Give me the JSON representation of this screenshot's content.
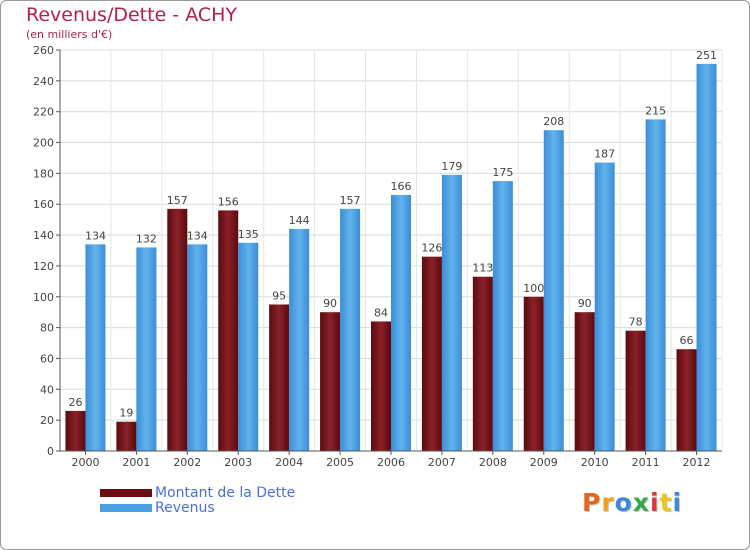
{
  "chart_data": {
    "type": "bar",
    "title": "Revenus/Dette - ACHY",
    "subtitle": "(en milliers d'€)",
    "xlabel": "",
    "ylabel": "",
    "categories": [
      "2000",
      "2001",
      "2002",
      "2003",
      "2004",
      "2005",
      "2006",
      "2007",
      "2008",
      "2009",
      "2010",
      "2011",
      "2012"
    ],
    "series": [
      {
        "name": "Montant de la Dette",
        "color": "#7a1218",
        "values": [
          26,
          19,
          157,
          156,
          95,
          90,
          84,
          126,
          113,
          100,
          90,
          78,
          66
        ]
      },
      {
        "name": "Revenus",
        "color": "#4a9fe0",
        "values": [
          134,
          132,
          134,
          135,
          144,
          157,
          166,
          179,
          175,
          208,
          187,
          215,
          251
        ]
      }
    ],
    "ylim": [
      0,
      260
    ],
    "yticks": [
      0,
      20,
      40,
      60,
      80,
      100,
      120,
      140,
      160,
      180,
      200,
      220,
      240,
      260
    ],
    "grid": true,
    "legend_position": "bottom-left"
  },
  "logo": {
    "text": "Proxiti",
    "colors": [
      "#e8641e",
      "#f0a01e",
      "#3a8ad8",
      "#3aa84a",
      "#d83a3a",
      "#e8c81e",
      "#3a8ad8"
    ]
  }
}
